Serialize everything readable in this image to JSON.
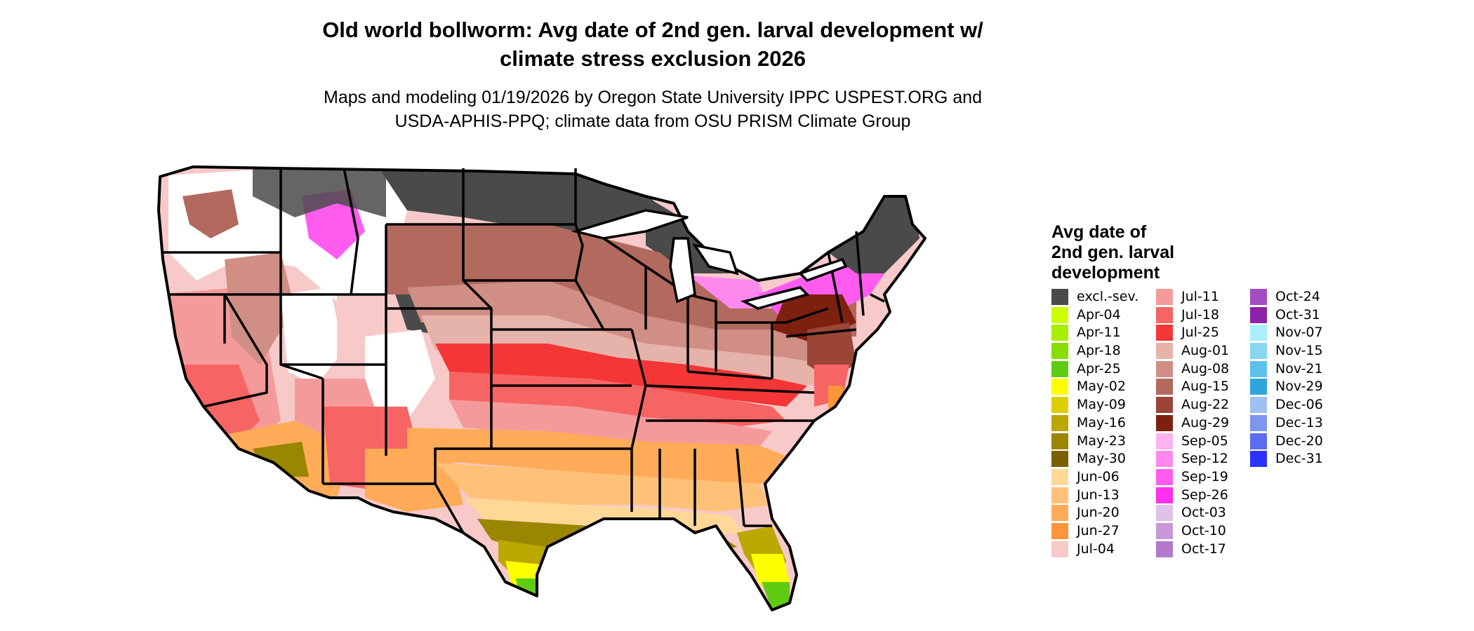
{
  "title_line1": "Old world bollworm: Avg date of 2nd gen. larval development w/",
  "title_line2": "climate stress exclusion 2026",
  "subtitle_line1": "Maps and modeling 01/19/2026 by Oregon State University IPPC USPEST.ORG and",
  "subtitle_line2": "USDA-APHIS-PPQ; climate data from OSU PRISM Climate Group",
  "legend": {
    "title_line1": "Avg date of",
    "title_line2": "2nd gen. larval",
    "title_line3": "development",
    "columns": [
      [
        {
          "label": "excl.-sev.",
          "color": "#4a4a4a"
        },
        {
          "label": "Apr-04",
          "color": "#ccff00"
        },
        {
          "label": "Apr-11",
          "color": "#a8ee00"
        },
        {
          "label": "Apr-18",
          "color": "#88dd00"
        },
        {
          "label": "Apr-25",
          "color": "#5fcc11"
        },
        {
          "label": "May-02",
          "color": "#ffff00"
        },
        {
          "label": "May-09",
          "color": "#dccf00"
        },
        {
          "label": "May-16",
          "color": "#bba800"
        },
        {
          "label": "May-23",
          "color": "#9a8600"
        },
        {
          "label": "May-30",
          "color": "#7a6000"
        },
        {
          "label": "Jun-06",
          "color": "#ffd898"
        },
        {
          "label": "Jun-13",
          "color": "#ffc178"
        },
        {
          "label": "Jun-20",
          "color": "#ffab58"
        },
        {
          "label": "Jun-27",
          "color": "#ff953a"
        },
        {
          "label": "Jul-04",
          "color": "#f7c9c9"
        }
      ],
      [
        {
          "label": "Jul-11",
          "color": "#f59a9a"
        },
        {
          "label": "Jul-18",
          "color": "#f76464"
        },
        {
          "label": "Jul-25",
          "color": "#f43636"
        },
        {
          "label": "Aug-01",
          "color": "#e6b3aa"
        },
        {
          "label": "Aug-08",
          "color": "#d08e84"
        },
        {
          "label": "Aug-15",
          "color": "#b2695e"
        },
        {
          "label": "Aug-22",
          "color": "#9a4536"
        },
        {
          "label": "Aug-29",
          "color": "#7e2010"
        },
        {
          "label": "Sep-05",
          "color": "#ffb3ee"
        },
        {
          "label": "Sep-12",
          "color": "#ff88ee"
        },
        {
          "label": "Sep-19",
          "color": "#ff5cef"
        },
        {
          "label": "Sep-26",
          "color": "#ff30ee"
        },
        {
          "label": "Oct-03",
          "color": "#dfc2ea"
        },
        {
          "label": "Oct-10",
          "color": "#c898da"
        },
        {
          "label": "Oct-17",
          "color": "#b378cc"
        }
      ],
      [
        {
          "label": "Oct-24",
          "color": "#a24cc2"
        },
        {
          "label": "Oct-31",
          "color": "#8a22aa"
        },
        {
          "label": "Nov-07",
          "color": "#aaeeff"
        },
        {
          "label": "Nov-15",
          "color": "#88d6f2"
        },
        {
          "label": "Nov-21",
          "color": "#5ec0ec"
        },
        {
          "label": "Nov-29",
          "color": "#2ea6dc"
        },
        {
          "label": "Dec-06",
          "color": "#9fc0f0"
        },
        {
          "label": "Dec-13",
          "color": "#7e96ee"
        },
        {
          "label": "Dec-20",
          "color": "#5a6cf0"
        },
        {
          "label": "Dec-31",
          "color": "#2a32ff"
        }
      ]
    ]
  },
  "map": {
    "outline_color": "#000000",
    "excluded_color": "#4a4a4a",
    "nodata_color": "#ffffff"
  }
}
